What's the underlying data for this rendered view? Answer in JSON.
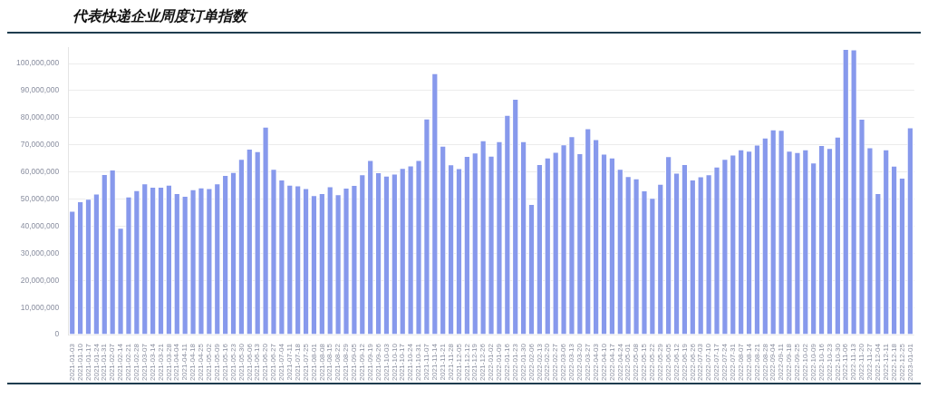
{
  "chart_data": {
    "type": "bar",
    "title": "代表快递企业周度订单指数",
    "categories": [
      "2021-01-03",
      "2021-01-10",
      "2021-01-17",
      "2021-01-24",
      "2021-01-31",
      "2021-02-07",
      "2021-02-14",
      "2021-02-21",
      "2021-02-28",
      "2021-03-07",
      "2021-03-14",
      "2021-03-21",
      "2021-03-28",
      "2021-04-04",
      "2021-04-11",
      "2021-04-18",
      "2021-04-25",
      "2021-05-02",
      "2021-05-09",
      "2021-05-16",
      "2021-05-23",
      "2021-05-30",
      "2021-06-06",
      "2021-06-13",
      "2021-06-20",
      "2021-06-27",
      "2021-07-04",
      "2021-07-11",
      "2021-07-18",
      "2021-07-25",
      "2021-08-01",
      "2021-08-08",
      "2021-08-15",
      "2021-08-22",
      "2021-08-29",
      "2021-09-05",
      "2021-09-12",
      "2021-09-19",
      "2021-09-26",
      "2021-10-03",
      "2021-10-10",
      "2021-10-17",
      "2021-10-24",
      "2021-10-31",
      "2021-11-07",
      "2021-11-14",
      "2021-11-21",
      "2021-11-28",
      "2021-12-05",
      "2021-12-12",
      "2021-12-19",
      "2021-12-26",
      "2022-01-02",
      "2022-01-09",
      "2022-01-16",
      "2022-01-23",
      "2022-01-30",
      "2022-02-06",
      "2022-02-13",
      "2022-02-20",
      "2022-02-27",
      "2022-03-06",
      "2022-03-13",
      "2022-03-20",
      "2022-03-27",
      "2022-04-03",
      "2022-04-10",
      "2022-04-17",
      "2022-04-24",
      "2022-05-01",
      "2022-05-08",
      "2022-05-15",
      "2022-05-22",
      "2022-05-29",
      "2022-06-05",
      "2022-06-12",
      "2022-06-19",
      "2022-06-26",
      "2022-07-03",
      "2022-07-10",
      "2022-07-17",
      "2022-07-24",
      "2022-07-31",
      "2022-08-07",
      "2022-08-14",
      "2022-08-21",
      "2022-08-28",
      "2022-09-04",
      "2022-09-11",
      "2022-09-18",
      "2022-09-25",
      "2022-10-02",
      "2022-10-09",
      "2022-10-16",
      "2022-10-23",
      "2022-10-30",
      "2022-11-06",
      "2022-11-13",
      "2022-11-20",
      "2022-11-27",
      "2022-12-04",
      "2022-12-11",
      "2022-12-18",
      "2022-12-25",
      "2023-01-01"
    ],
    "values": [
      45700000,
      49200000,
      50100000,
      52000000,
      59200000,
      60900000,
      39400000,
      50900000,
      53300000,
      55800000,
      54500000,
      54500000,
      55300000,
      52200000,
      51200000,
      53600000,
      54300000,
      54000000,
      55800000,
      58900000,
      60000000,
      64800000,
      68600000,
      67700000,
      76700000,
      61100000,
      57200000,
      55300000,
      55000000,
      54000000,
      51400000,
      52200000,
      54700000,
      51800000,
      54200000,
      55200000,
      59100000,
      64400000,
      59900000,
      58600000,
      59400000,
      61500000,
      62400000,
      64400000,
      79700000,
      96400000,
      69700000,
      62800000,
      61400000,
      65900000,
      67200000,
      71700000,
      66000000,
      71300000,
      81000000,
      87000000,
      71300000,
      48200000,
      62900000,
      65300000,
      67400000,
      70200000,
      73200000,
      66900000,
      76100000,
      72100000,
      66700000,
      65300000,
      61100000,
      58500000,
      57600000,
      53200000,
      50400000,
      55600000,
      65800000,
      59700000,
      62900000,
      57200000,
      58400000,
      59100000,
      62000000,
      64800000,
      66400000,
      68300000,
      67800000,
      70100000,
      72700000,
      75700000,
      75500000,
      67800000,
      67300000,
      68300000,
      63500000,
      69900000,
      68800000,
      73000000,
      105400000,
      105200000,
      79600000,
      69100000,
      52200000,
      68300000,
      62300000,
      57900000,
      76400000
    ],
    "color": "#8799ec",
    "ylim": [
      0,
      106000000
    ],
    "yticks": [
      0,
      {
        "value": 10000000,
        "label": "10,000,000"
      },
      {
        "value": 20000000,
        "label": "20,000,000"
      },
      {
        "value": 30000000,
        "label": "30,000,000"
      },
      {
        "value": 40000000,
        "label": "40,000,000"
      },
      {
        "value": 50000000,
        "label": "50,000,000"
      },
      {
        "value": 60000000,
        "label": "60,000,000"
      },
      {
        "value": 70000000,
        "label": "70,000,000"
      },
      {
        "value": 80000000,
        "label": "80,000,000"
      },
      {
        "value": 90000000,
        "label": "90,000,000"
      },
      {
        "value": 100000000,
        "label": "100,000,000"
      }
    ],
    "grid": "y",
    "legend": false
  }
}
